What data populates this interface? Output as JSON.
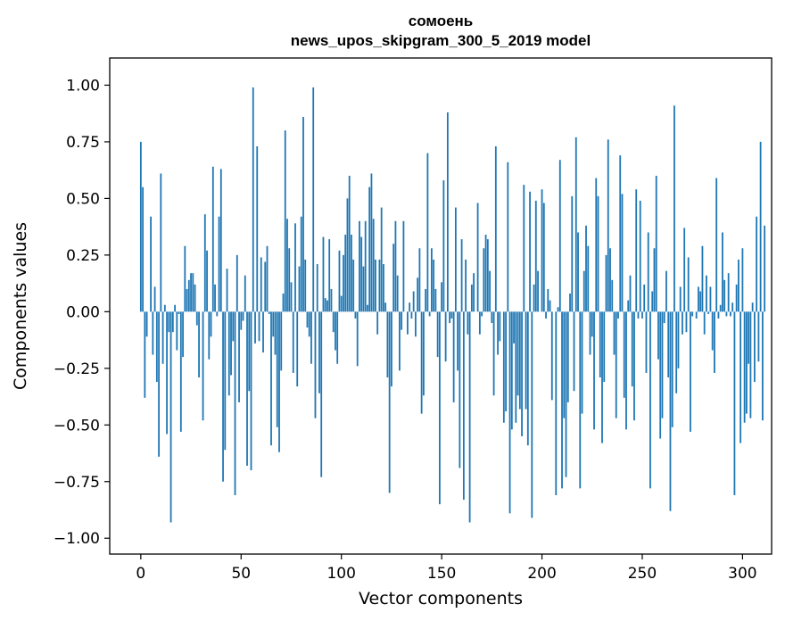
{
  "chart_data": {
    "type": "bar",
    "title": [
      "сомоень",
      "news_upos_skipgram_300_5_2019 model"
    ],
    "xlabel": "Vector components",
    "ylabel": "Components values",
    "xlim": [
      -15.5,
      314.5
    ],
    "ylim": [
      -1.07,
      1.12
    ],
    "xticks": [
      0,
      50,
      100,
      150,
      200,
      250,
      300
    ],
    "xtick_labels": [
      "0",
      "50",
      "100",
      "150",
      "200",
      "250",
      "300"
    ],
    "yticks": [
      1.0,
      0.75,
      0.5,
      0.25,
      0.0,
      -0.25,
      -0.5,
      -0.75,
      -1.0
    ],
    "ytick_labels": [
      "1.00",
      "0.75",
      "0.50",
      "0.25",
      "0.00",
      "−0.25",
      "−0.50",
      "−0.75",
      "−1.00"
    ],
    "grid": false,
    "color": "#1f77b4",
    "values": [
      0.75,
      0.55,
      -0.38,
      -0.11,
      0.0,
      0.42,
      -0.19,
      0.11,
      -0.31,
      -0.64,
      0.61,
      -0.23,
      0.03,
      -0.54,
      -0.09,
      -0.93,
      -0.09,
      0.03,
      -0.17,
      -0.01,
      -0.53,
      -0.2,
      0.29,
      0.1,
      0.14,
      0.17,
      0.17,
      0.12,
      -0.06,
      -0.29,
      0.0,
      -0.48,
      0.43,
      0.27,
      -0.21,
      -0.11,
      0.64,
      0.12,
      -0.02,
      0.42,
      0.63,
      -0.75,
      -0.61,
      0.19,
      -0.37,
      -0.28,
      -0.13,
      -0.81,
      0.25,
      -0.4,
      -0.08,
      -0.04,
      0.16,
      -0.68,
      -0.35,
      -0.7,
      0.99,
      -0.14,
      0.73,
      -0.13,
      0.24,
      -0.18,
      0.22,
      0.29,
      -0.01,
      -0.59,
      -0.11,
      -0.19,
      -0.51,
      -0.62,
      -0.26,
      0.08,
      0.8,
      0.41,
      0.28,
      0.13,
      -0.27,
      0.39,
      -0.33,
      0.2,
      0.42,
      0.86,
      0.23,
      -0.07,
      -0.11,
      -0.23,
      0.99,
      -0.47,
      0.21,
      -0.36,
      -0.73,
      0.33,
      0.06,
      0.05,
      0.32,
      0.1,
      -0.09,
      -0.17,
      -0.23,
      0.27,
      0.07,
      0.25,
      0.34,
      0.5,
      0.6,
      0.34,
      0.23,
      -0.03,
      -0.24,
      0.4,
      0.33,
      0.2,
      0.4,
      0.03,
      0.55,
      0.61,
      0.41,
      0.23,
      -0.1,
      0.23,
      0.46,
      0.21,
      0.04,
      -0.29,
      -0.8,
      -0.33,
      0.3,
      0.4,
      0.16,
      -0.26,
      -0.08,
      0.4,
      0.0,
      -0.1,
      0.04,
      -0.03,
      0.09,
      -0.11,
      0.15,
      0.28,
      -0.45,
      -0.37,
      0.1,
      0.7,
      -0.02,
      0.28,
      0.23,
      0.1,
      -0.2,
      -0.85,
      0.13,
      0.58,
      -0.22,
      0.88,
      -0.05,
      -0.03,
      -0.4,
      0.46,
      -0.26,
      -0.69,
      0.32,
      -0.83,
      0.23,
      -0.1,
      -0.93,
      0.12,
      0.17,
      0.0,
      0.48,
      -0.1,
      -0.02,
      0.28,
      0.34,
      0.32,
      0.18,
      -0.05,
      -0.37,
      0.73,
      -0.19,
      -0.13,
      0.0,
      -0.49,
      -0.44,
      0.66,
      -0.89,
      -0.52,
      -0.14,
      -0.49,
      -0.37,
      -0.43,
      -0.55,
      0.56,
      -0.43,
      -0.59,
      0.53,
      -0.91,
      0.12,
      0.49,
      0.18,
      0.0,
      0.54,
      0.48,
      -0.03,
      0.1,
      0.05,
      -0.39,
      0.0,
      -0.81,
      0.02,
      0.67,
      -0.78,
      -0.47,
      -0.73,
      -0.4,
      0.08,
      0.51,
      -0.35,
      0.77,
      0.35,
      -0.78,
      -0.45,
      0.18,
      0.38,
      0.29,
      -0.19,
      -0.11,
      -0.52,
      0.59,
      0.51,
      -0.29,
      -0.58,
      -0.31,
      0.25,
      0.76,
      0.28,
      0.14,
      -0.19,
      -0.47,
      -0.03,
      0.69,
      0.52,
      -0.38,
      -0.52,
      0.05,
      0.16,
      -0.33,
      -0.48,
      0.54,
      -0.03,
      0.49,
      -0.03,
      0.12,
      -0.27,
      0.35,
      -0.78,
      0.09,
      0.28,
      0.6,
      -0.21,
      -0.56,
      -0.47,
      -0.05,
      0.18,
      -0.29,
      -0.88,
      -0.51,
      0.91,
      -0.36,
      -0.25,
      0.11,
      -0.1,
      0.37,
      -0.09,
      0.24,
      -0.53,
      -0.02,
      0.0,
      -0.03,
      0.11,
      0.09,
      0.29,
      -0.1,
      0.16,
      -0.01,
      0.11,
      -0.17,
      -0.27,
      0.59,
      -0.03,
      0.03,
      0.35,
      0.14,
      -0.02,
      0.17,
      -0.02,
      0.04,
      -0.81,
      0.12,
      0.23,
      -0.58,
      0.28,
      -0.49,
      -0.45,
      -0.23,
      -0.47,
      0.04,
      -0.31,
      0.42,
      -0.22,
      0.75,
      -0.48,
      0.38
    ]
  }
}
